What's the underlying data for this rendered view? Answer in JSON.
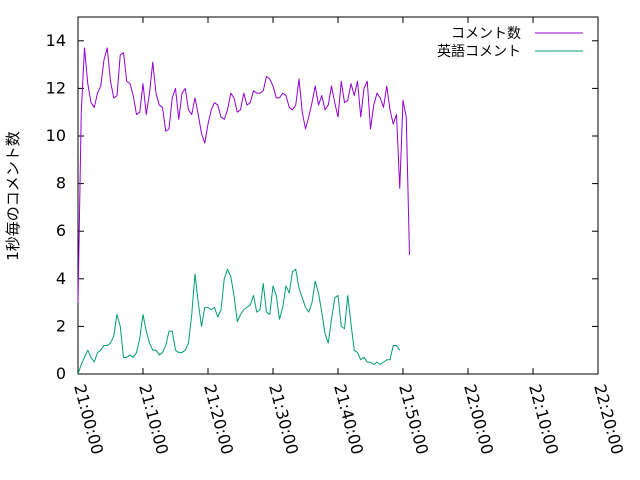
{
  "chart_data": {
    "type": "line",
    "title": "",
    "xlabel": "",
    "ylabel": "1秒毎のコメント数",
    "xlim": [
      "21:00:00",
      "22:20:00"
    ],
    "ylim": [
      0,
      15
    ],
    "x_ticks": [
      "21:00:00",
      "21:10:00",
      "21:20:00",
      "21:30:00",
      "21:40:00",
      "21:50:00",
      "22:00:00",
      "22:10:00",
      "22:20:00"
    ],
    "y_ticks": [
      0,
      2,
      4,
      6,
      8,
      10,
      12,
      14
    ],
    "x_tick_rotation_deg": 75,
    "grid": false,
    "legend": "top-right",
    "series": [
      {
        "name": "コメント数",
        "color": "#9400d3",
        "points": [
          [
            "21:00:00",
            3.0
          ],
          [
            "21:00:30",
            11.0
          ],
          [
            "21:01:00",
            13.7
          ],
          [
            "21:01:30",
            12.2
          ],
          [
            "21:02:00",
            11.4
          ],
          [
            "21:02:30",
            11.2
          ],
          [
            "21:03:00",
            11.8
          ],
          [
            "21:03:30",
            12.1
          ],
          [
            "21:04:00",
            13.2
          ],
          [
            "21:04:30",
            13.7
          ],
          [
            "21:05:00",
            12.3
          ],
          [
            "21:05:30",
            11.6
          ],
          [
            "21:06:00",
            11.7
          ],
          [
            "21:06:30",
            13.4
          ],
          [
            "21:07:00",
            13.5
          ],
          [
            "21:07:30",
            12.3
          ],
          [
            "21:08:00",
            12.2
          ],
          [
            "21:08:30",
            11.7
          ],
          [
            "21:09:00",
            10.9
          ],
          [
            "21:09:30",
            11.0
          ],
          [
            "21:10:00",
            12.2
          ],
          [
            "21:10:30",
            10.9
          ],
          [
            "21:11:00",
            11.8
          ],
          [
            "21:11:30",
            13.1
          ],
          [
            "21:12:00",
            11.8
          ],
          [
            "21:12:30",
            11.3
          ],
          [
            "21:13:00",
            11.2
          ],
          [
            "21:13:30",
            10.2
          ],
          [
            "21:14:00",
            10.3
          ],
          [
            "21:14:30",
            11.6
          ],
          [
            "21:15:00",
            12.0
          ],
          [
            "21:15:30",
            10.7
          ],
          [
            "21:16:00",
            11.8
          ],
          [
            "21:16:30",
            12.0
          ],
          [
            "21:17:00",
            11.1
          ],
          [
            "21:17:30",
            10.9
          ],
          [
            "21:18:00",
            11.6
          ],
          [
            "21:18:30",
            10.9
          ],
          [
            "21:19:00",
            10.1
          ],
          [
            "21:19:30",
            9.7
          ],
          [
            "21:20:00",
            10.5
          ],
          [
            "21:20:30",
            11.1
          ],
          [
            "21:21:00",
            11.4
          ],
          [
            "21:21:30",
            11.3
          ],
          [
            "21:22:00",
            10.8
          ],
          [
            "21:22:30",
            10.7
          ],
          [
            "21:23:00",
            11.1
          ],
          [
            "21:23:30",
            11.8
          ],
          [
            "21:24:00",
            11.6
          ],
          [
            "21:24:30",
            11.0
          ],
          [
            "21:25:00",
            11.1
          ],
          [
            "21:25:30",
            11.8
          ],
          [
            "21:26:00",
            11.3
          ],
          [
            "21:26:30",
            11.4
          ],
          [
            "21:27:00",
            11.9
          ],
          [
            "21:27:30",
            11.8
          ],
          [
            "21:28:00",
            11.8
          ],
          [
            "21:28:30",
            11.9
          ],
          [
            "21:29:00",
            12.5
          ],
          [
            "21:29:30",
            12.4
          ],
          [
            "21:30:00",
            12.1
          ],
          [
            "21:30:30",
            11.6
          ],
          [
            "21:31:00",
            11.6
          ],
          [
            "21:31:30",
            11.8
          ],
          [
            "21:32:00",
            11.7
          ],
          [
            "21:32:30",
            11.2
          ],
          [
            "21:33:00",
            11.1
          ],
          [
            "21:33:30",
            11.3
          ],
          [
            "21:34:00",
            12.4
          ],
          [
            "21:34:30",
            11.0
          ],
          [
            "21:35:00",
            10.3
          ],
          [
            "21:35:30",
            10.8
          ],
          [
            "21:36:00",
            11.4
          ],
          [
            "21:36:30",
            12.1
          ],
          [
            "21:37:00",
            11.3
          ],
          [
            "21:37:30",
            11.7
          ],
          [
            "21:38:00",
            11.1
          ],
          [
            "21:38:30",
            11.3
          ],
          [
            "21:39:00",
            12.1
          ],
          [
            "21:39:30",
            11.4
          ],
          [
            "21:40:00",
            10.8
          ],
          [
            "21:40:30",
            12.3
          ],
          [
            "21:41:00",
            11.4
          ],
          [
            "21:41:30",
            11.5
          ],
          [
            "21:42:00",
            12.2
          ],
          [
            "21:42:30",
            11.7
          ],
          [
            "21:43:00",
            12.3
          ],
          [
            "21:43:30",
            10.8
          ],
          [
            "21:44:00",
            12.0
          ],
          [
            "21:44:30",
            12.3
          ],
          [
            "21:45:00",
            10.3
          ],
          [
            "21:45:30",
            11.3
          ],
          [
            "21:46:00",
            11.8
          ],
          [
            "21:46:30",
            11.6
          ],
          [
            "21:47:00",
            11.2
          ],
          [
            "21:47:30",
            12.1
          ],
          [
            "21:48:00",
            11.1
          ],
          [
            "21:48:30",
            10.5
          ],
          [
            "21:49:00",
            10.9
          ],
          [
            "21:49:30",
            7.8
          ],
          [
            "21:50:00",
            11.5
          ],
          [
            "21:50:30",
            10.8
          ],
          [
            "21:51:00",
            5.0
          ]
        ]
      },
      {
        "name": "英語コメント",
        "color": "#009e73",
        "points": [
          [
            "21:00:00",
            0.0
          ],
          [
            "21:00:30",
            0.4
          ],
          [
            "21:01:00",
            0.7
          ],
          [
            "21:01:30",
            1.0
          ],
          [
            "21:02:00",
            0.7
          ],
          [
            "21:02:30",
            0.5
          ],
          [
            "21:03:00",
            0.9
          ],
          [
            "21:03:30",
            1.0
          ],
          [
            "21:04:00",
            1.2
          ],
          [
            "21:04:30",
            1.2
          ],
          [
            "21:05:00",
            1.3
          ],
          [
            "21:05:30",
            1.6
          ],
          [
            "21:06:00",
            2.5
          ],
          [
            "21:06:30",
            2.0
          ],
          [
            "21:07:00",
            0.7
          ],
          [
            "21:07:30",
            0.7
          ],
          [
            "21:08:00",
            0.8
          ],
          [
            "21:08:30",
            0.7
          ],
          [
            "21:09:00",
            0.9
          ],
          [
            "21:09:30",
            1.5
          ],
          [
            "21:10:00",
            2.5
          ],
          [
            "21:10:30",
            1.8
          ],
          [
            "21:11:00",
            1.3
          ],
          [
            "21:11:30",
            1.0
          ],
          [
            "21:12:00",
            1.0
          ],
          [
            "21:12:30",
            0.8
          ],
          [
            "21:13:00",
            0.9
          ],
          [
            "21:13:30",
            1.2
          ],
          [
            "21:14:00",
            1.8
          ],
          [
            "21:14:30",
            1.8
          ],
          [
            "21:15:00",
            1.0
          ],
          [
            "21:15:30",
            0.9
          ],
          [
            "21:16:00",
            0.9
          ],
          [
            "21:16:30",
            1.0
          ],
          [
            "21:17:00",
            1.3
          ],
          [
            "21:17:30",
            2.5
          ],
          [
            "21:18:00",
            4.2
          ],
          [
            "21:18:30",
            3.0
          ],
          [
            "21:19:00",
            2.0
          ],
          [
            "21:19:30",
            2.8
          ],
          [
            "21:20:00",
            2.8
          ],
          [
            "21:20:30",
            2.7
          ],
          [
            "21:21:00",
            2.8
          ],
          [
            "21:21:30",
            2.4
          ],
          [
            "21:22:00",
            2.7
          ],
          [
            "21:22:30",
            4.0
          ],
          [
            "21:23:00",
            4.4
          ],
          [
            "21:23:30",
            4.1
          ],
          [
            "21:24:00",
            3.3
          ],
          [
            "21:24:30",
            2.2
          ],
          [
            "21:25:00",
            2.5
          ],
          [
            "21:25:30",
            2.7
          ],
          [
            "21:26:00",
            2.8
          ],
          [
            "21:26:30",
            2.9
          ],
          [
            "21:27:00",
            3.3
          ],
          [
            "21:27:30",
            2.6
          ],
          [
            "21:28:00",
            2.7
          ],
          [
            "21:28:30",
            3.8
          ],
          [
            "21:29:00",
            2.6
          ],
          [
            "21:29:30",
            2.5
          ],
          [
            "21:30:00",
            3.7
          ],
          [
            "21:30:30",
            3.3
          ],
          [
            "21:31:00",
            2.3
          ],
          [
            "21:31:30",
            2.8
          ],
          [
            "21:32:00",
            3.7
          ],
          [
            "21:32:30",
            3.4
          ],
          [
            "21:33:00",
            4.3
          ],
          [
            "21:33:30",
            4.4
          ],
          [
            "21:34:00",
            3.6
          ],
          [
            "21:34:30",
            3.2
          ],
          [
            "21:35:00",
            2.8
          ],
          [
            "21:35:30",
            2.6
          ],
          [
            "21:36:00",
            3.0
          ],
          [
            "21:36:30",
            3.9
          ],
          [
            "21:37:00",
            3.4
          ],
          [
            "21:37:30",
            2.6
          ],
          [
            "21:38:00",
            1.7
          ],
          [
            "21:38:30",
            1.3
          ],
          [
            "21:39:00",
            2.3
          ],
          [
            "21:39:30",
            3.2
          ],
          [
            "21:40:00",
            3.3
          ],
          [
            "21:40:30",
            2.0
          ],
          [
            "21:41:00",
            1.9
          ],
          [
            "21:41:30",
            3.3
          ],
          [
            "21:42:00",
            2.1
          ],
          [
            "21:42:30",
            1.0
          ],
          [
            "21:43:00",
            0.9
          ],
          [
            "21:43:30",
            0.6
          ],
          [
            "21:44:00",
            0.7
          ],
          [
            "21:44:30",
            0.5
          ],
          [
            "21:45:00",
            0.5
          ],
          [
            "21:45:30",
            0.4
          ],
          [
            "21:46:00",
            0.5
          ],
          [
            "21:46:30",
            0.4
          ],
          [
            "21:47:00",
            0.5
          ],
          [
            "21:47:30",
            0.6
          ],
          [
            "21:48:00",
            0.6
          ],
          [
            "21:48:30",
            1.2
          ],
          [
            "21:49:00",
            1.2
          ],
          [
            "21:49:30",
            1.0
          ]
        ]
      }
    ]
  }
}
